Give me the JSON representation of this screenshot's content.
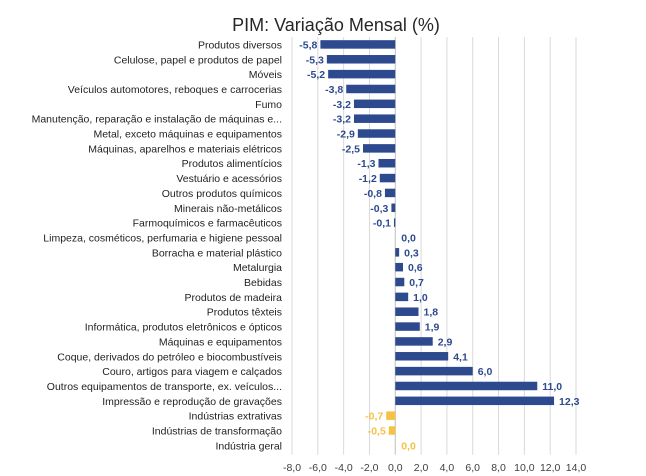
{
  "chart_data": {
    "type": "bar",
    "orientation": "horizontal",
    "title": "PIM: Variação Mensal (%)",
    "xlabel": "",
    "ylabel": "",
    "xlim": [
      -8,
      14
    ],
    "x_ticks": [
      "-8,0",
      "-6,0",
      "-4,0",
      "-2,0",
      "0,0",
      "2,0",
      "4,0",
      "6,0",
      "8,0",
      "10,0",
      "12,0",
      "14,0"
    ],
    "grid": true,
    "legend": "none",
    "colors": {
      "sector": "#2e4a8e",
      "aggregate": "#f5c242"
    },
    "categories": [
      "Produtos diversos",
      "Celulose, papel e produtos de papel",
      "Móveis",
      "Veículos automotores, reboques e carrocerias",
      "Fumo",
      "Manutenção, reparação e instalação de máquinas e...",
      "Metal, exceto máquinas e equipamentos",
      "Máquinas, aparelhos e materiais elétricos",
      "Produtos alimentícios",
      "Vestuário e acessórios",
      "Outros produtos químicos",
      "Minerais não-metálicos",
      "Farmoquímicos e farmacêuticos",
      "Limpeza, cosméticos, perfumaria e higiene pessoal",
      "Borracha e material plástico",
      "Metalurgia",
      "Bebidas",
      "Produtos de madeira",
      "Produtos têxteis",
      "Informática, produtos eletrônicos e ópticos",
      "Máquinas e equipamentos",
      "Coque, derivados do petróleo e biocombustíveis",
      "Couro, artigos para viagem e calçados",
      "Outros equipamentos de transporte, ex. veículos...",
      "Impressão e reprodução de gravações",
      "Indústrias extrativas",
      "Indústrias de transformação",
      "Indústria geral"
    ],
    "values": [
      -5.8,
      -5.3,
      -5.2,
      -3.8,
      -3.2,
      -3.2,
      -2.9,
      -2.5,
      -1.3,
      -1.2,
      -0.8,
      -0.3,
      -0.1,
      0.0,
      0.3,
      0.6,
      0.7,
      1.0,
      1.8,
      1.9,
      2.9,
      4.1,
      6.0,
      11.0,
      12.3,
      -0.7,
      -0.5,
      0.0
    ],
    "value_labels": [
      "-5,8",
      "-5,3",
      "-5,2",
      "-3,8",
      "-3,2",
      "-3,2",
      "-2,9",
      "-2,5",
      "-1,3",
      "-1,2",
      "-0,8",
      "-0,3",
      "-0,1",
      "0,0",
      "0,3",
      "0,6",
      "0,7",
      "1,0",
      "1,8",
      "1,9",
      "2,9",
      "4,1",
      "6,0",
      "11,0",
      "12,3",
      "-0,7",
      "-0,5",
      "0,0"
    ],
    "highlight": [
      "sector",
      "sector",
      "sector",
      "sector",
      "sector",
      "sector",
      "sector",
      "sector",
      "sector",
      "sector",
      "sector",
      "sector",
      "sector",
      "sector",
      "sector",
      "sector",
      "sector",
      "sector",
      "sector",
      "sector",
      "sector",
      "sector",
      "sector",
      "sector",
      "sector",
      "aggregate",
      "aggregate",
      "aggregate"
    ]
  }
}
